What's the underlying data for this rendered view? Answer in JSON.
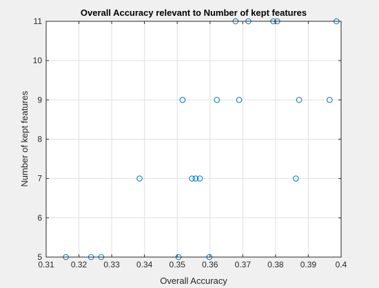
{
  "chart_data": {
    "type": "scatter",
    "title": "Overall Accuracy relevant to Number of kept features",
    "xlabel": "Overall Accuracy",
    "ylabel": "Number of kept features",
    "xlim": [
      0.31,
      0.4
    ],
    "ylim": [
      5,
      11
    ],
    "xticks": [
      0.31,
      0.32,
      0.33,
      0.34,
      0.35,
      0.36,
      0.37,
      0.38,
      0.39,
      0.4
    ],
    "xtick_labels": [
      "0.31",
      "0.32",
      "0.33",
      "0.34",
      "0.35",
      "0.36",
      "0.37",
      "0.38",
      "0.39",
      "0.4"
    ],
    "yticks": [
      5,
      6,
      7,
      8,
      9,
      10,
      11
    ],
    "ytick_labels": [
      "5",
      "6",
      "7",
      "8",
      "9",
      "10",
      "11"
    ],
    "grid": true,
    "marker": "open-circle",
    "marker_color": "#0072bd",
    "points": [
      {
        "x": 0.316,
        "y": 5
      },
      {
        "x": 0.3237,
        "y": 5
      },
      {
        "x": 0.3268,
        "y": 5
      },
      {
        "x": 0.3504,
        "y": 5
      },
      {
        "x": 0.3598,
        "y": 5
      },
      {
        "x": 0.3385,
        "y": 7
      },
      {
        "x": 0.3545,
        "y": 7
      },
      {
        "x": 0.3556,
        "y": 7
      },
      {
        "x": 0.3569,
        "y": 7
      },
      {
        "x": 0.3862,
        "y": 7
      },
      {
        "x": 0.3516,
        "y": 9
      },
      {
        "x": 0.3621,
        "y": 9
      },
      {
        "x": 0.3689,
        "y": 9
      },
      {
        "x": 0.3872,
        "y": 9
      },
      {
        "x": 0.3965,
        "y": 9
      },
      {
        "x": 0.3678,
        "y": 11
      },
      {
        "x": 0.3717,
        "y": 11
      },
      {
        "x": 0.3793,
        "y": 11
      },
      {
        "x": 0.3805,
        "y": 11
      },
      {
        "x": 0.3986,
        "y": 11
      }
    ]
  }
}
